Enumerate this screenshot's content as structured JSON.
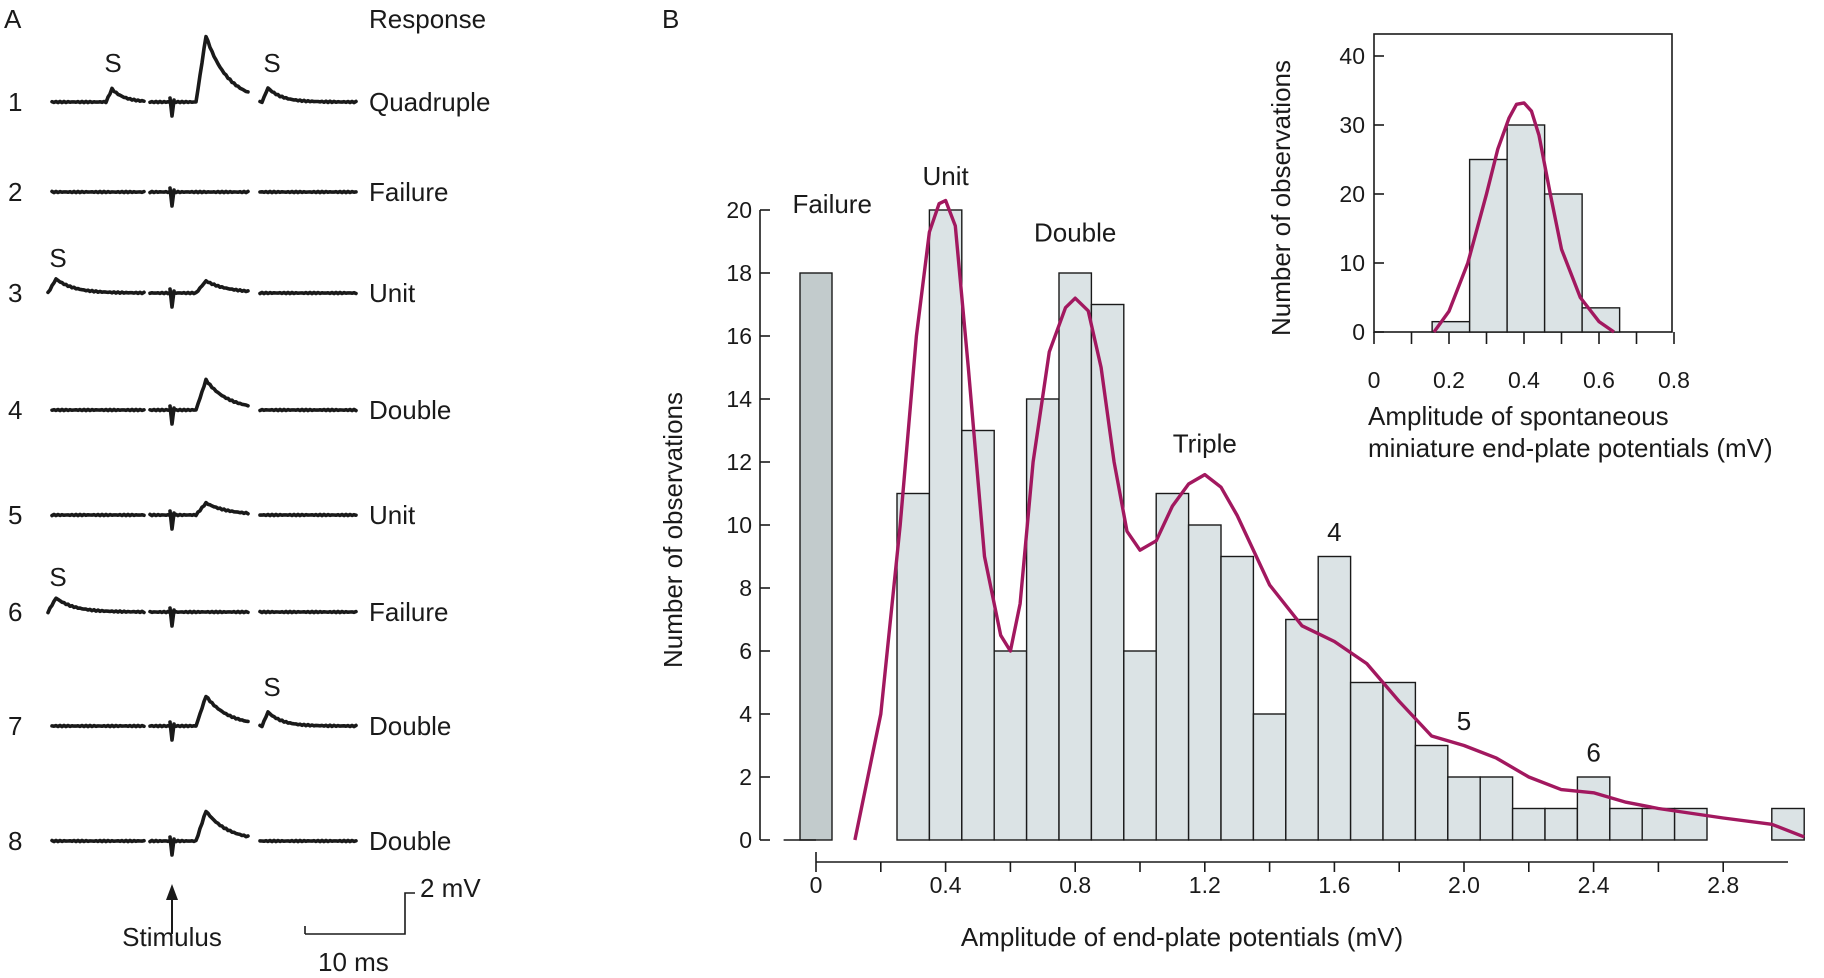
{
  "panel_a": {
    "panel_label": "A",
    "response_header": "Response",
    "trials": [
      {
        "number": "1",
        "response": "Quadruple",
        "epp": 4,
        "spont": [
          {
            "label": "S",
            "at": "pre-stim"
          },
          {
            "label": "S",
            "at": "late"
          }
        ]
      },
      {
        "number": "2",
        "response": "Failure",
        "epp": 0,
        "spont": []
      },
      {
        "number": "3",
        "response": "Unit",
        "epp": 1,
        "spont": [
          {
            "label": "S",
            "at": "start"
          }
        ]
      },
      {
        "number": "4",
        "response": "Double",
        "epp": 2,
        "spont": []
      },
      {
        "number": "5",
        "response": "Unit",
        "epp": 1,
        "spont": []
      },
      {
        "number": "6",
        "response": "Failure",
        "epp": 0,
        "spont": [
          {
            "label": "S",
            "at": "start"
          }
        ]
      },
      {
        "number": "7",
        "response": "Double",
        "epp": 2,
        "spont": [
          {
            "label": "S",
            "at": "late"
          }
        ]
      },
      {
        "number": "8",
        "response": "Double",
        "epp": 2,
        "spont": []
      }
    ],
    "stimulus_label": "Stimulus",
    "scale_voltage": "2 mV",
    "scale_time": "10 ms"
  },
  "chart_data": [
    {
      "type": "bar",
      "panel_label": "B",
      "xlabel": "Amplitude of end-plate potentials (mV)",
      "ylabel": "Number of observations",
      "xlim": [
        -0.1,
        3.1
      ],
      "ylim": [
        0,
        20
      ],
      "xticks": [
        "0",
        "0.4",
        "0.8",
        "1.2",
        "1.6",
        "2.0",
        "2.4",
        "2.8"
      ],
      "yticks": [
        "0",
        "2",
        "4",
        "6",
        "8",
        "10",
        "12",
        "14",
        "16",
        "18",
        "20"
      ],
      "failure_bar": {
        "x": 0,
        "value": 18
      },
      "bins": {
        "start": 0.25,
        "width": 0.1,
        "values": [
          11,
          20,
          13,
          6,
          14,
          18,
          17,
          6,
          11,
          10,
          9,
          4,
          7,
          9,
          5,
          5,
          3,
          2,
          2,
          1,
          1,
          2,
          1,
          1,
          1,
          0,
          0,
          1
        ]
      },
      "fit_curve": {
        "color": "#a2185f",
        "x": [
          0.12,
          0.2,
          0.26,
          0.31,
          0.35,
          0.38,
          0.4,
          0.43,
          0.47,
          0.52,
          0.57,
          0.6,
          0.63,
          0.67,
          0.72,
          0.77,
          0.8,
          0.84,
          0.88,
          0.92,
          0.96,
          1.0,
          1.05,
          1.1,
          1.15,
          1.2,
          1.25,
          1.3,
          1.4,
          1.5,
          1.6,
          1.7,
          1.75,
          1.8,
          1.9,
          2.0,
          2.1,
          2.2,
          2.3,
          2.4,
          2.5,
          2.6,
          2.8,
          2.95,
          3.05
        ],
        "y": [
          0,
          4,
          10,
          16,
          19.3,
          20.2,
          20.3,
          19.5,
          15,
          9,
          6.5,
          6,
          7.5,
          12,
          15.5,
          16.9,
          17.2,
          16.8,
          15,
          12,
          9.8,
          9.2,
          9.5,
          10.6,
          11.3,
          11.6,
          11.2,
          10.3,
          8.1,
          6.8,
          6.3,
          5.6,
          5,
          4.4,
          3.3,
          3.0,
          2.6,
          2.0,
          1.6,
          1.5,
          1.2,
          1.0,
          0.7,
          0.5,
          0.1
        ]
      },
      "annotations": [
        {
          "text": "Failure",
          "x": 0.05,
          "y": 19.9
        },
        {
          "text": "Unit",
          "x": 0.4,
          "y": 20.8
        },
        {
          "text": "Double",
          "x": 0.8,
          "y": 19.0
        },
        {
          "text": "Triple",
          "x": 1.2,
          "y": 12.3
        },
        {
          "text": "4",
          "x": 1.6,
          "y": 9.5
        },
        {
          "text": "5",
          "x": 2.0,
          "y": 3.5
        },
        {
          "text": "6",
          "x": 2.4,
          "y": 2.5
        }
      ]
    },
    {
      "type": "bar",
      "xlabel": "Amplitude of spontaneous miniature end-plate potentials (mV)",
      "xlabel_lines": [
        "Amplitude of spontaneous",
        "miniature end-plate potentials (mV)"
      ],
      "ylabel": "Number of observations",
      "xlim": [
        0,
        0.8
      ],
      "ylim": [
        0,
        40
      ],
      "xticks": [
        "0",
        "0.2",
        "0.4",
        "0.6",
        "0.8"
      ],
      "yticks": [
        "0",
        "10",
        "20",
        "30",
        "40"
      ],
      "bins": {
        "start": 0.2,
        "width": 0.1,
        "values": [
          1.5,
          25,
          30,
          20,
          3.5
        ]
      },
      "fit_curve": {
        "color": "#a2185f",
        "x": [
          0.16,
          0.2,
          0.25,
          0.3,
          0.33,
          0.36,
          0.38,
          0.4,
          0.42,
          0.44,
          0.47,
          0.5,
          0.55,
          0.6,
          0.64
        ],
        "y": [
          0,
          3,
          10,
          20,
          26.5,
          31,
          33,
          33.2,
          32,
          28.5,
          20,
          12,
          5,
          1.5,
          0
        ]
      }
    }
  ]
}
